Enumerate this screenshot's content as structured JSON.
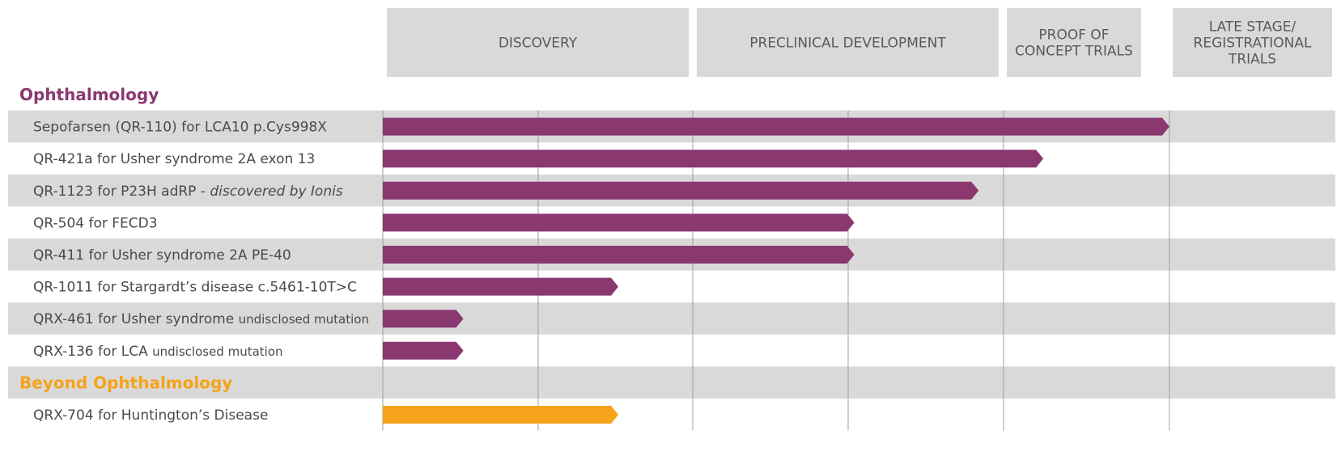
{
  "chart_data": {
    "type": "bar",
    "title": "",
    "stages": [
      {
        "lines": [
          "DISCOVERY"
        ]
      },
      {
        "lines": [
          "PRECLINICAL DEVELOPMENT"
        ]
      },
      {
        "lines": [
          "PROOF OF",
          "CONCEPT TRIALS"
        ]
      },
      {
        "lines": [
          "LATE STAGE/",
          "REGISTRATIONAL",
          "TRIALS"
        ]
      }
    ],
    "progress_unit": "stage (0 = start of Discovery, 4 = end of Late Stage)",
    "xlim": [
      0,
      4
    ],
    "sections": [
      {
        "title": "Ophthalmology",
        "color": "#8b3870",
        "programs": [
          {
            "parts": [
              {
                "text": "Sepofarsen (QR-110) for LCA10 p.Cys998X",
                "style": "normal"
              }
            ],
            "progress": 3.0
          },
          {
            "parts": [
              {
                "text": "QR-421a for Usher syndrome 2A exon 13",
                "style": "normal"
              }
            ],
            "progress": 2.24
          },
          {
            "parts": [
              {
                "text": "QR-1123 for P23H adRP - ",
                "style": "normal"
              },
              {
                "text": "discovered by Ionis",
                "style": "italic"
              }
            ],
            "progress": 1.92
          },
          {
            "parts": [
              {
                "text": "QR-504 for FECD3",
                "style": "normal"
              }
            ],
            "progress": 1.52
          },
          {
            "parts": [
              {
                "text": "QR-411 for Usher syndrome 2A PE-40",
                "style": "normal"
              }
            ],
            "progress": 1.52
          },
          {
            "parts": [
              {
                "text": "QR-1011 for Stargardt’s disease c.5461-10T>C",
                "style": "normal"
              }
            ],
            "progress": 0.76
          },
          {
            "parts": [
              {
                "text": "QRX-461 for Usher syndrome ",
                "style": "normal"
              },
              {
                "text": "undisclosed mutation",
                "style": "small"
              }
            ],
            "progress": 0.26
          },
          {
            "parts": [
              {
                "text": "QRX-136 for LCA ",
                "style": "normal"
              },
              {
                "text": "undisclosed mutation",
                "style": "small"
              }
            ],
            "progress": 0.26
          }
        ]
      },
      {
        "title": "Beyond Ophthalmology",
        "color": "#f5a31a",
        "programs": [
          {
            "parts": [
              {
                "text": "QRX-704 for Huntington’s Disease",
                "style": "normal"
              }
            ],
            "progress": 0.76
          }
        ]
      }
    ]
  },
  "colors": {
    "header_bg": "#d9d9d9",
    "band_bg": "#d9d9d9",
    "grid": "#a0a0a0",
    "ophthalmology": "#8b3870",
    "beyond": "#f5a31a"
  }
}
